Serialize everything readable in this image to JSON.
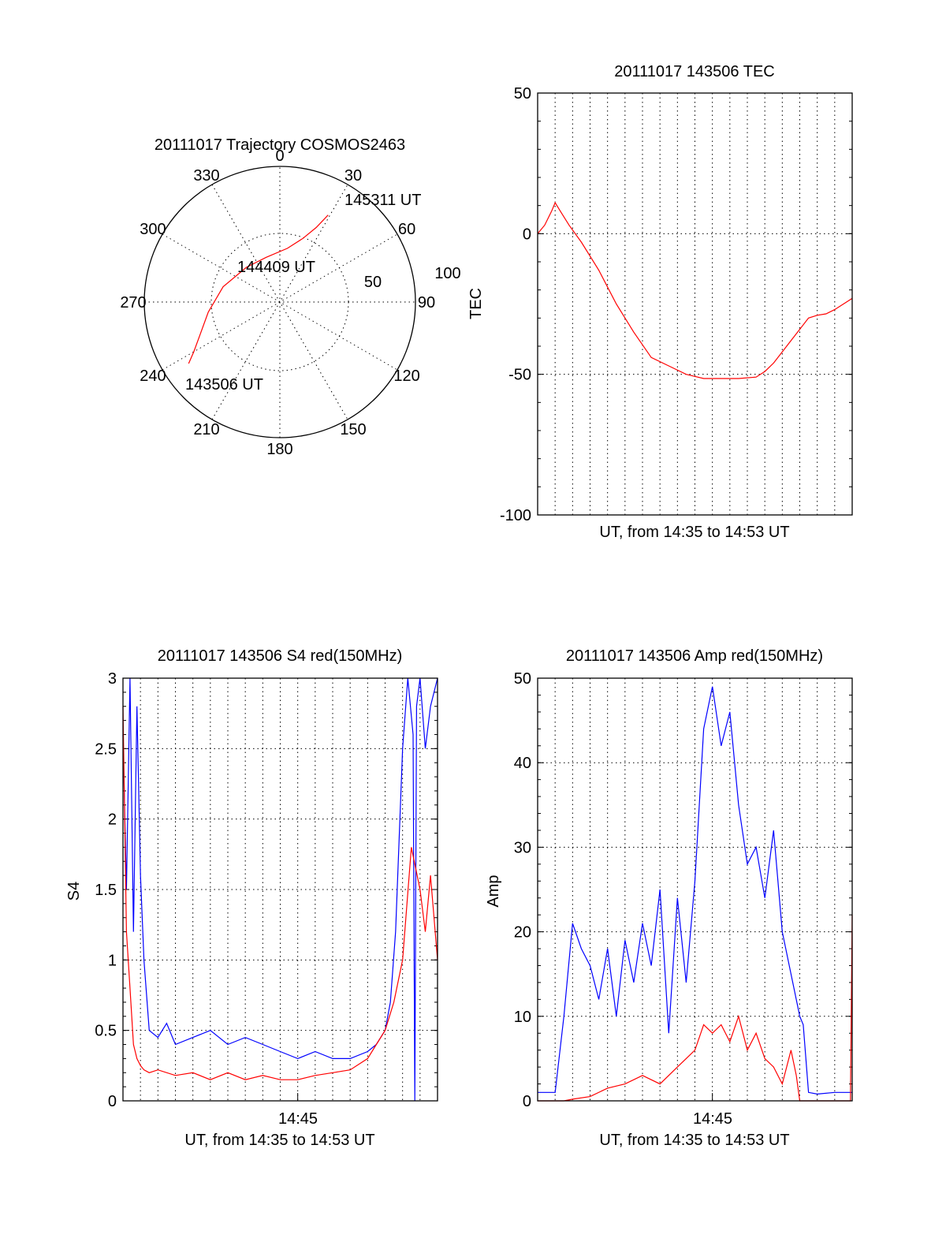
{
  "chart_data": [
    {
      "type": "polar",
      "title": "20111017 Trajectory COSMOS2463",
      "angle_labels": [
        "0",
        "30",
        "60",
        "90",
        "120",
        "150",
        "180",
        "210",
        "240",
        "270",
        "300",
        "330"
      ],
      "radial_labels": [
        "50",
        "100"
      ],
      "rmax": 90,
      "series": [
        {
          "color": "#ff0000",
          "points": [
            {
              "az": 236,
              "zen": 73
            },
            {
              "az": 240,
              "zen": 66
            },
            {
              "az": 248,
              "zen": 57
            },
            {
              "az": 262,
              "zen": 48
            },
            {
              "az": 285,
              "zen": 39
            },
            {
              "az": 316,
              "zen": 32
            },
            {
              "az": 343,
              "zen": 31
            },
            {
              "az": 8,
              "zen": 36
            },
            {
              "az": 20,
              "zen": 45
            },
            {
              "az": 26,
              "zen": 55
            },
            {
              "az": 29,
              "zen": 66
            }
          ]
        }
      ],
      "annotations": [
        {
          "text": "145311 UT",
          "az": 34,
          "zen": 71
        },
        {
          "text": "144409 UT",
          "az": 355,
          "zen": 24
        },
        {
          "text": "143506 UT",
          "az": 225,
          "zen": 62
        }
      ]
    },
    {
      "type": "line",
      "title": "20111017 143506 TEC",
      "xlabel": "UT, from 14:35 to 14:53 UT",
      "ylabel": "TEC",
      "xlim": [
        0,
        18
      ],
      "ylim": [
        -100,
        50
      ],
      "yticks": [
        "50",
        "0",
        "-50",
        "-100"
      ],
      "xticks": [],
      "series": [
        {
          "color": "#ff0000",
          "x": [
            0,
            0.4,
            0.8,
            1.0,
            1.3,
            1.8,
            2.5,
            3.5,
            4.5,
            5.5,
            6.5,
            7.5,
            8.5,
            9.5,
            10.5,
            11.5,
            12.5,
            13.0,
            13.5,
            14.5,
            15.0,
            15.5,
            16.0,
            16.5,
            17.0,
            17.5,
            18.0
          ],
          "y": [
            0,
            3,
            8,
            11,
            8,
            3,
            -3,
            -13,
            -25,
            -35,
            -44,
            -47,
            -50,
            -51.5,
            -51.5,
            -51.5,
            -51,
            -49,
            -46,
            -38,
            -34,
            -30,
            -29,
            -28.5,
            -27,
            -25,
            -23
          ]
        }
      ]
    },
    {
      "type": "line",
      "title": "20111017 143506 S4 red(150MHz)",
      "xlabel": "UT, from 14:35 to 14:53 UT",
      "ylabel": "S4",
      "xlim": [
        0,
        18
      ],
      "ylim": [
        0,
        3
      ],
      "yticks": [
        "0",
        "0.5",
        "1",
        "1.5",
        "2",
        "2.5",
        "3"
      ],
      "xticks": [
        {
          "label": "14:45",
          "x": 10
        }
      ],
      "series": [
        {
          "color": "#0000ff",
          "x": [
            0,
            0.2,
            0.4,
            0.6,
            0.8,
            1.0,
            1.2,
            1.5,
            2.0,
            2.5,
            3.0,
            4.0,
            5.0,
            6.0,
            7.0,
            8.0,
            9.0,
            10.0,
            11.0,
            12.0,
            13.0,
            14.0,
            14.5,
            15.0,
            15.3,
            15.6,
            16.0,
            16.3,
            16.6,
            16.7,
            16.8,
            17.0,
            17.3,
            17.6,
            18.0
          ],
          "y": [
            2.6,
            1.5,
            3.0,
            1.2,
            2.8,
            1.6,
            1.0,
            0.5,
            0.45,
            0.55,
            0.4,
            0.45,
            0.5,
            0.4,
            0.45,
            0.4,
            0.35,
            0.3,
            0.35,
            0.3,
            0.3,
            0.35,
            0.4,
            0.5,
            0.7,
            1.2,
            2.5,
            3.0,
            2.6,
            0.0,
            2.8,
            3.0,
            2.5,
            2.8,
            3.0
          ]
        },
        {
          "color": "#ff0000",
          "x": [
            0,
            0.2,
            0.4,
            0.6,
            0.8,
            1.0,
            1.2,
            1.5,
            2.0,
            3.0,
            4.0,
            5.0,
            6.0,
            7.0,
            8.0,
            9.0,
            10.0,
            11.0,
            12.0,
            13.0,
            14.0,
            14.5,
            15.0,
            15.5,
            16.0,
            16.5,
            17.0,
            17.3,
            17.6,
            18.0
          ],
          "y": [
            2.8,
            1.2,
            0.8,
            0.4,
            0.3,
            0.25,
            0.22,
            0.2,
            0.22,
            0.18,
            0.2,
            0.15,
            0.2,
            0.15,
            0.18,
            0.15,
            0.15,
            0.18,
            0.2,
            0.22,
            0.3,
            0.4,
            0.5,
            0.7,
            1.0,
            1.8,
            1.5,
            1.2,
            1.6,
            1.0
          ]
        }
      ]
    },
    {
      "type": "line",
      "title": "20111017 143506 Amp red(150MHz)",
      "xlabel": "UT, from 14:35 to 14:53 UT",
      "ylabel": "Amp",
      "xlim": [
        0,
        18
      ],
      "ylim": [
        0,
        50
      ],
      "yticks": [
        "0",
        "10",
        "20",
        "30",
        "40",
        "50"
      ],
      "xticks": [
        {
          "label": "14:45",
          "x": 10
        }
      ],
      "series": [
        {
          "color": "#0000ff",
          "x": [
            0,
            1.0,
            1.5,
            2.0,
            2.5,
            3.0,
            3.5,
            4.0,
            4.5,
            5.0,
            5.5,
            6.0,
            6.5,
            7.0,
            7.5,
            8.0,
            8.5,
            9.0,
            9.5,
            10.0,
            10.5,
            11.0,
            11.5,
            12.0,
            12.5,
            13.0,
            13.5,
            14.0,
            14.5,
            15.0,
            15.2,
            15.5,
            16.0,
            17.0,
            18.0
          ],
          "y": [
            1,
            1,
            10,
            21,
            18,
            16,
            12,
            18,
            10,
            19,
            14,
            21,
            16,
            25,
            8,
            24,
            14,
            26,
            44,
            49,
            42,
            46,
            35,
            28,
            30,
            24,
            32,
            20,
            15,
            10,
            9,
            1,
            0.8,
            1,
            1
          ]
        },
        {
          "color": "#ff0000",
          "x": [
            0,
            1.5,
            2.0,
            3.0,
            4.0,
            5.0,
            6.0,
            7.0,
            8.0,
            8.5,
            9.0,
            9.5,
            10.0,
            10.5,
            11.0,
            11.5,
            12.0,
            12.5,
            13.0,
            13.5,
            14.0,
            14.5,
            14.8,
            15.0,
            16.0,
            17.0,
            17.9,
            18.0
          ],
          "y": [
            0,
            0,
            0.2,
            0.5,
            1.5,
            2,
            3,
            2,
            4,
            5,
            6,
            9,
            8,
            9,
            7,
            10,
            6,
            8,
            5,
            4,
            2,
            6,
            3,
            0,
            0,
            0,
            0,
            22
          ]
        }
      ]
    }
  ]
}
